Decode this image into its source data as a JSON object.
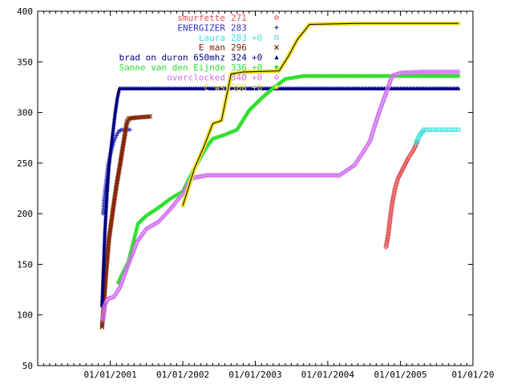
{
  "chart_data": {
    "type": "line",
    "title": "",
    "xlabel": "",
    "ylabel": "",
    "ylim": [
      50,
      400
    ],
    "xlim": [
      "2000-01-01",
      "2006-01-01"
    ],
    "yticks": [
      "50",
      "100",
      "150",
      "200",
      "250",
      "300",
      "350",
      "400"
    ],
    "xticks": [
      {
        "date": "2001-01-01",
        "label": "01/01/2001"
      },
      {
        "date": "2002-01-01",
        "label": "01/01/2002"
      },
      {
        "date": "2003-01-01",
        "label": "01/01/2003"
      },
      {
        "date": "2004-01-01",
        "label": "01/01/2004"
      },
      {
        "date": "2005-01-01",
        "label": "01/01/2005"
      },
      {
        "date": "2006-01-01",
        "label": "01/01/20"
      }
    ],
    "legend_position": "top-right",
    "series": [
      {
        "name": "smurfette",
        "legend_value": "271",
        "legend_delta": "",
        "color": "#e05050",
        "marker": "diamond",
        "points": [
          [
            "2004-10-20",
            167
          ],
          [
            "2004-10-25",
            172
          ],
          [
            "2004-11-01",
            180
          ],
          [
            "2004-11-10",
            195
          ],
          [
            "2004-11-20",
            210
          ],
          [
            "2004-12-05",
            225
          ],
          [
            "2004-12-20",
            235
          ],
          [
            "2005-01-15",
            245
          ],
          [
            "2005-02-10",
            255
          ],
          [
            "2005-03-05",
            262
          ],
          [
            "2005-03-20",
            268
          ],
          [
            "2005-03-28",
            271
          ]
        ]
      },
      {
        "name": "ENERGIZER",
        "legend_value": "283",
        "legend_delta": "",
        "color": "#3030c0",
        "marker": "plus",
        "points": [
          [
            "2000-11-25",
            200
          ],
          [
            "2000-12-01",
            215
          ],
          [
            "2000-12-10",
            230
          ],
          [
            "2000-12-20",
            248
          ],
          [
            "2001-01-05",
            262
          ],
          [
            "2001-01-20",
            272
          ],
          [
            "2001-02-05",
            279
          ],
          [
            "2001-02-15",
            282
          ],
          [
            "2001-03-01",
            283
          ],
          [
            "2001-04-10",
            283
          ]
        ]
      },
      {
        "name": "Laura",
        "legend_value": "283",
        "legend_delta": "+0",
        "color": "#40e0e0",
        "marker": "square",
        "points": [
          [
            "2005-03-20",
            270
          ],
          [
            "2005-04-10",
            278
          ],
          [
            "2005-05-01",
            283
          ],
          [
            "2005-08-01",
            283
          ],
          [
            "2005-10-20",
            283
          ]
        ]
      },
      {
        "name": "E man",
        "legend_value": "296",
        "legend_delta": "",
        "color": "#802000",
        "marker": "cross",
        "points": [
          [
            "2000-11-20",
            88
          ],
          [
            "2000-11-25",
            100
          ],
          [
            "2000-12-10",
            140
          ],
          [
            "2000-12-25",
            175
          ],
          [
            "2001-01-15",
            205
          ],
          [
            "2001-02-01",
            228
          ],
          [
            "2001-02-20",
            250
          ],
          [
            "2001-03-10",
            272
          ],
          [
            "2001-03-25",
            290
          ],
          [
            "2001-04-05",
            294
          ],
          [
            "2001-05-15",
            295
          ],
          [
            "2001-07-20",
            296
          ]
        ]
      },
      {
        "name": "brad on duron 650mhz",
        "legend_value": "324",
        "legend_delta": "+0",
        "color": "#000080",
        "marker": "triangle",
        "points": [
          [
            "2000-11-20",
            110
          ],
          [
            "2000-11-28",
            150
          ],
          [
            "2000-12-05",
            185
          ],
          [
            "2000-12-15",
            220
          ],
          [
            "2000-12-25",
            248
          ],
          [
            "2001-01-10",
            275
          ],
          [
            "2001-01-25",
            300
          ],
          [
            "2001-02-05",
            315
          ],
          [
            "2001-02-15",
            324
          ],
          [
            "2002-06-01",
            324
          ],
          [
            "2003-06-01",
            324
          ],
          [
            "2004-06-01",
            324
          ],
          [
            "2005-06-01",
            324
          ],
          [
            "2005-10-20",
            324
          ]
        ]
      },
      {
        "name": "Sanne van den Eijnde",
        "legend_value": "336",
        "legend_delta": "+0",
        "color": "#30e030",
        "marker": "asterisk",
        "points": [
          [
            "2001-02-10",
            132
          ],
          [
            "2001-03-01",
            140
          ],
          [
            "2001-04-01",
            152
          ],
          [
            "2001-05-01",
            175
          ],
          [
            "2001-05-20",
            190
          ],
          [
            "2001-07-01",
            198
          ],
          [
            "2001-09-01",
            206
          ],
          [
            "2001-11-01",
            215
          ],
          [
            "2002-01-01",
            222
          ],
          [
            "2002-03-01",
            245
          ],
          [
            "2002-05-01",
            266
          ],
          [
            "2002-06-01",
            274
          ],
          [
            "2002-08-01",
            278
          ],
          [
            "2002-10-01",
            283
          ],
          [
            "2002-12-01",
            302
          ],
          [
            "2003-02-01",
            314
          ],
          [
            "2003-04-01",
            324
          ],
          [
            "2003-06-01",
            333
          ],
          [
            "2003-09-01",
            336
          ],
          [
            "2004-06-01",
            336
          ],
          [
            "2005-06-01",
            336
          ],
          [
            "2005-10-20",
            336
          ]
        ]
      },
      {
        "name": "overclocked",
        "legend_value": "340",
        "legend_delta": "+0",
        "color": "#d070f0",
        "marker": "diamond",
        "points": [
          [
            "2000-11-25",
            95
          ],
          [
            "2000-12-05",
            110
          ],
          [
            "2000-12-20",
            116
          ],
          [
            "2001-01-20",
            118
          ],
          [
            "2001-02-20",
            128
          ],
          [
            "2001-04-01",
            150
          ],
          [
            "2001-05-15",
            172
          ],
          [
            "2001-07-01",
            185
          ],
          [
            "2001-09-01",
            192
          ],
          [
            "2001-11-01",
            205
          ],
          [
            "2002-01-01",
            220
          ],
          [
            "2002-02-15",
            235
          ],
          [
            "2002-05-01",
            238
          ],
          [
            "2003-01-01",
            238
          ],
          [
            "2003-08-01",
            238
          ],
          [
            "2004-03-01",
            238
          ],
          [
            "2004-05-15",
            248
          ],
          [
            "2004-07-01",
            262
          ],
          [
            "2004-08-01",
            272
          ],
          [
            "2004-09-15",
            300
          ],
          [
            "2004-10-15",
            316
          ],
          [
            "2004-11-20",
            336
          ],
          [
            "2005-01-01",
            339
          ],
          [
            "2005-05-01",
            340
          ],
          [
            "2005-10-20",
            340
          ]
        ]
      },
      {
        "name": "C",
        "name_suffix": "ws",
        "legend_value": "388",
        "legend_delta": "+0",
        "color": "#f0e030",
        "marker": "circle",
        "line_color": "#000000",
        "points": [
          [
            "2002-01-01",
            208
          ],
          [
            "2002-03-01",
            245
          ],
          [
            "2002-04-15",
            265
          ],
          [
            "2002-06-01",
            289
          ],
          [
            "2002-07-15",
            292
          ],
          [
            "2002-09-01",
            338
          ],
          [
            "2002-11-01",
            340
          ],
          [
            "2003-05-01",
            341
          ],
          [
            "2003-06-15",
            355
          ],
          [
            "2003-08-01",
            372
          ],
          [
            "2003-10-01",
            387
          ],
          [
            "2004-06-01",
            388
          ],
          [
            "2005-06-01",
            388
          ],
          [
            "2005-10-20",
            388
          ]
        ]
      }
    ]
  }
}
